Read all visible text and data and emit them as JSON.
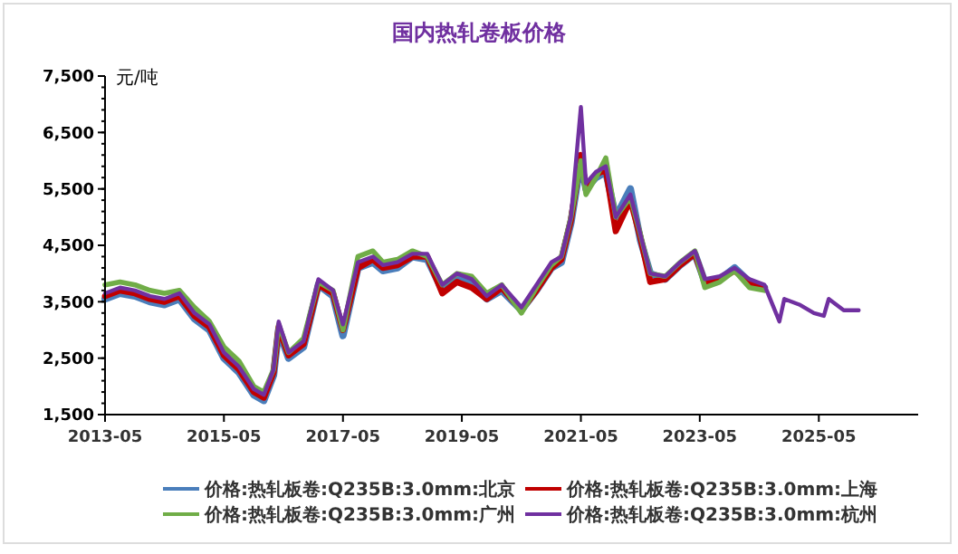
{
  "chart_data": {
    "type": "line",
    "title": "国内热轧卷板价格",
    "ylabel": "元/吨",
    "x": [
      "2013-05",
      "2013-08",
      "2013-11",
      "2014-02",
      "2014-05",
      "2014-08",
      "2014-11",
      "2015-02",
      "2015-05",
      "2015-08",
      "2015-11",
      "2016-01",
      "2016-03",
      "2016-04",
      "2016-06",
      "2016-09",
      "2016-12",
      "2017-03",
      "2017-05",
      "2017-08",
      "2017-11",
      "2018-01",
      "2018-04",
      "2018-07",
      "2018-10",
      "2019-01",
      "2019-04",
      "2019-07",
      "2019-10",
      "2020-01",
      "2020-05",
      "2020-08",
      "2020-11",
      "2021-01",
      "2021-03",
      "2021-05",
      "2021-06",
      "2021-08",
      "2021-10",
      "2021-12",
      "2022-03",
      "2022-05",
      "2022-07",
      "2022-10",
      "2023-01",
      "2023-04",
      "2023-06",
      "2023-09",
      "2023-12",
      "2024-03",
      "2024-06",
      "2024-09",
      "2024-10",
      "2025-01",
      "2025-04",
      "2025-06",
      "2025-07",
      "2025-10",
      "2026-01"
    ],
    "series": [
      {
        "name": "价格:热轧板卷:Q235B:3.0mm:北京",
        "color": "#4a7ebb",
        "values": [
          3550,
          3650,
          3600,
          3500,
          3450,
          3550,
          3200,
          3000,
          2500,
          2250,
          1850,
          1750,
          2200,
          3000,
          2500,
          2700,
          3800,
          3600,
          2900,
          4100,
          4200,
          4050,
          4100,
          4300,
          4250,
          3700,
          3900,
          3850,
          3550,
          3700,
          3350,
          3700,
          4100,
          4200,
          4900,
          6000,
          5500,
          5700,
          5800,
          5000,
          5500,
          4600,
          4000,
          3900,
          4150,
          4350,
          3850,
          3900,
          4100,
          3850,
          3750,
          null,
          null,
          null,
          null,
          null,
          null,
          null,
          null
        ]
      },
      {
        "name": "价格:热轧板卷:Q235B:3.0mm:上海",
        "color": "#c00000",
        "values": [
          3600,
          3700,
          3650,
          3550,
          3500,
          3600,
          3250,
          3050,
          2550,
          2300,
          1900,
          1800,
          2250,
          3050,
          2550,
          2750,
          3800,
          3650,
          3000,
          4100,
          4250,
          4100,
          4150,
          4300,
          4300,
          3650,
          3850,
          3750,
          3550,
          3750,
          3350,
          3700,
          4100,
          4250,
          4950,
          6100,
          5500,
          5750,
          5850,
          4750,
          5300,
          4650,
          3850,
          3900,
          4150,
          4350,
          3850,
          3900,
          4050,
          3850,
          3750,
          null,
          null,
          null,
          null,
          null,
          null,
          null,
          null
        ]
      },
      {
        "name": "价格:热轧板卷:Q235B:3.0mm:广州",
        "color": "#70ad47",
        "values": [
          3800,
          3850,
          3800,
          3700,
          3650,
          3700,
          3400,
          3150,
          2700,
          2450,
          2000,
          1900,
          2300,
          3100,
          2600,
          2850,
          3850,
          3700,
          3000,
          4300,
          4400,
          4200,
          4250,
          4400,
          4300,
          3800,
          4000,
          3950,
          3650,
          3800,
          3300,
          3750,
          4150,
          4300,
          5000,
          6000,
          5400,
          5700,
          6050,
          5000,
          5350,
          4700,
          4000,
          3950,
          4200,
          4400,
          3750,
          3850,
          4050,
          3750,
          3700,
          null,
          null,
          null,
          null,
          null,
          null,
          null,
          null
        ]
      },
      {
        "name": "价格:热轧板卷:Q235B:3.0mm:杭州",
        "color": "#7030a0",
        "values": [
          3650,
          3750,
          3700,
          3600,
          3550,
          3650,
          3300,
          3100,
          2600,
          2350,
          1950,
          1850,
          2300,
          3150,
          2600,
          2800,
          3900,
          3700,
          3100,
          4200,
          4300,
          4150,
          4200,
          4350,
          4350,
          3800,
          4000,
          3900,
          3600,
          3800,
          3400,
          3800,
          4200,
          4300,
          5000,
          6950,
          5600,
          5800,
          5900,
          5000,
          5400,
          4700,
          4000,
          3950,
          4200,
          4400,
          3900,
          3950,
          4100,
          3900,
          3800,
          3150,
          3550,
          3450,
          3300,
          3250,
          3550,
          3350,
          3350
        ]
      }
    ],
    "xlim": [
      "2013-05",
      "2027-01"
    ],
    "xticks": [
      "2013-05",
      "2015-05",
      "2017-05",
      "2019-05",
      "2021-05",
      "2023-05",
      "2025-05"
    ],
    "ylim": [
      1500,
      7500
    ],
    "yticks": [
      {
        "value": 1500,
        "label": "1,500"
      },
      {
        "value": 2500,
        "label": "2,500"
      },
      {
        "value": 3500,
        "label": "3,500"
      },
      {
        "value": 4500,
        "label": "4,500"
      },
      {
        "value": 5500,
        "label": "5,500"
      },
      {
        "value": 6500,
        "label": "6,500"
      },
      {
        "value": 7500,
        "label": "7,500"
      }
    ],
    "grid": false,
    "legend": "bottom",
    "line_style": "solid"
  }
}
